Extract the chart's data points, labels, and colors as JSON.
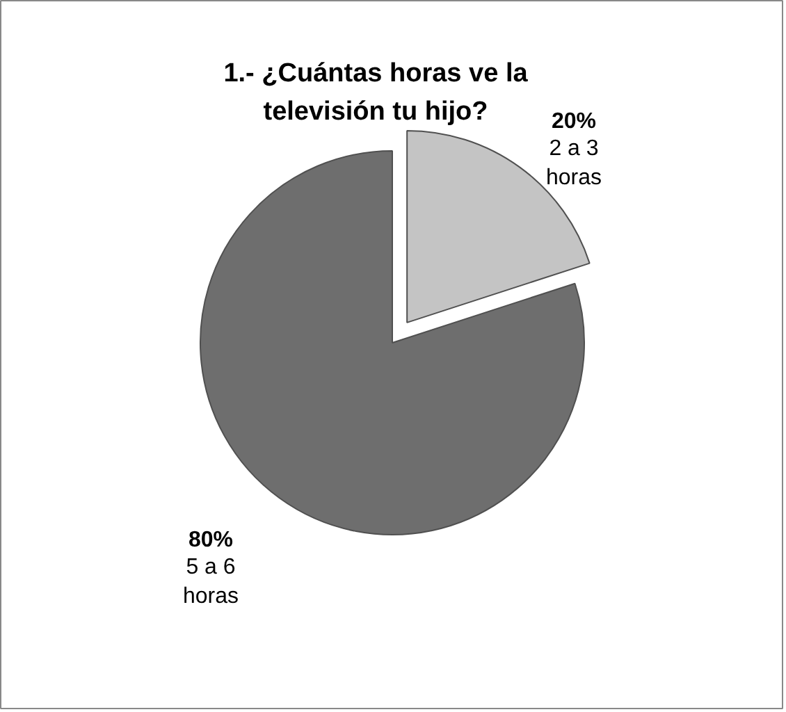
{
  "chart_data": {
    "type": "pie",
    "title": "1.- ¿Cuántas horas ve la\ntelevisión tu hijo?",
    "categories": [
      "2 a 3 horas",
      "5 a 6 horas"
    ],
    "values": [
      20,
      80
    ],
    "colors": [
      "#c4c4c4",
      "#6e6e6e"
    ],
    "value_labels": [
      "20%",
      "80%"
    ]
  }
}
